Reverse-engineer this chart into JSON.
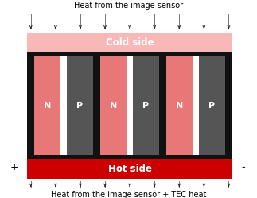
{
  "fig_width": 3.23,
  "fig_height": 2.49,
  "dpi": 100,
  "bg_color": "#ffffff",
  "title_top": "Heat from the image sensor",
  "title_bottom": "Heat from the image sensor + TEC heat",
  "cold_side_label": "Cold side",
  "hot_side_label": "Hot side",
  "cold_side_color": "#f8b8b8",
  "hot_side_color": "#cc0000",
  "black_bar_color": "#111111",
  "n_color": "#e87878",
  "p_color": "#555555",
  "plus_label": "+",
  "minus_label": "-",
  "arrow_line_color": "#777777",
  "arrow_head_color": "#222222",
  "text_fontsize": 7.0,
  "label_fontsize": 8.5,
  "np_fontsize": 8.0
}
